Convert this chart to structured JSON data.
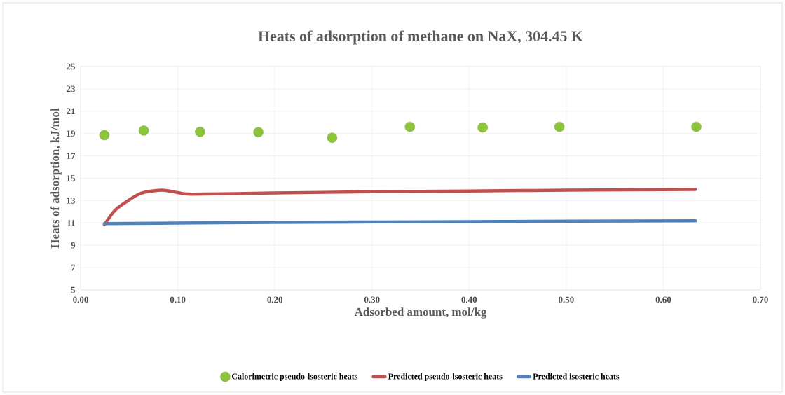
{
  "chart_data": {
    "type": "scatter",
    "title": "Heats of adsorption  of methane on NaX, 304.45 K",
    "xlabel": "Adsorbed amount, mol/kg",
    "ylabel": "Heats of adsorption, kJ/mol",
    "xlim": [
      0,
      0.7
    ],
    "xticks": [
      {
        "value": 0,
        "label": "0.00"
      },
      {
        "value": 0.1,
        "label": "0.10"
      },
      {
        "value": 0.2,
        "label": "0.20"
      },
      {
        "value": 0.3,
        "label": "0.30"
      },
      {
        "value": 0.4,
        "label": "0.40"
      },
      {
        "value": 0.5,
        "label": "0.50"
      },
      {
        "value": 0.6,
        "label": "0.60"
      },
      {
        "value": 0.7,
        "label": "0.70"
      }
    ],
    "ylim": [
      5,
      25
    ],
    "yticks": [
      5,
      7,
      9,
      11,
      13,
      15,
      17,
      19,
      21,
      23,
      25
    ],
    "grid": true,
    "legend": "bottom",
    "series": [
      {
        "name": "Calorimetric pseudo-isosteric heats",
        "marker": "circle",
        "color": "#8cc43c",
        "x": [
          0.0245,
          0.065,
          0.123,
          0.183,
          0.259,
          0.339,
          0.414,
          0.493,
          0.634
        ],
        "values": [
          18.85,
          19.27,
          19.16,
          19.12,
          18.62,
          19.6,
          19.54,
          19.6,
          19.6
        ]
      },
      {
        "name": "Predicted pseudo-isosteric heats",
        "type": "line",
        "marker": "none",
        "line_style": "solid",
        "color": "#c0504d",
        "x": [
          0.0245,
          0.037,
          0.061,
          0.083,
          0.1,
          0.114,
          0.2,
          0.3,
          0.4,
          0.5,
          0.633
        ],
        "values": [
          10.84,
          12.26,
          13.62,
          13.93,
          13.72,
          13.58,
          13.68,
          13.79,
          13.86,
          13.93,
          14.0
        ]
      },
      {
        "name": "Predicted isosteric heats",
        "type": "line",
        "marker": "none",
        "line_style": "solid",
        "color": "#4f81bd",
        "x": [
          0.0245,
          0.2,
          0.4,
          0.633
        ],
        "values": [
          10.94,
          11.05,
          11.12,
          11.19
        ]
      }
    ]
  }
}
